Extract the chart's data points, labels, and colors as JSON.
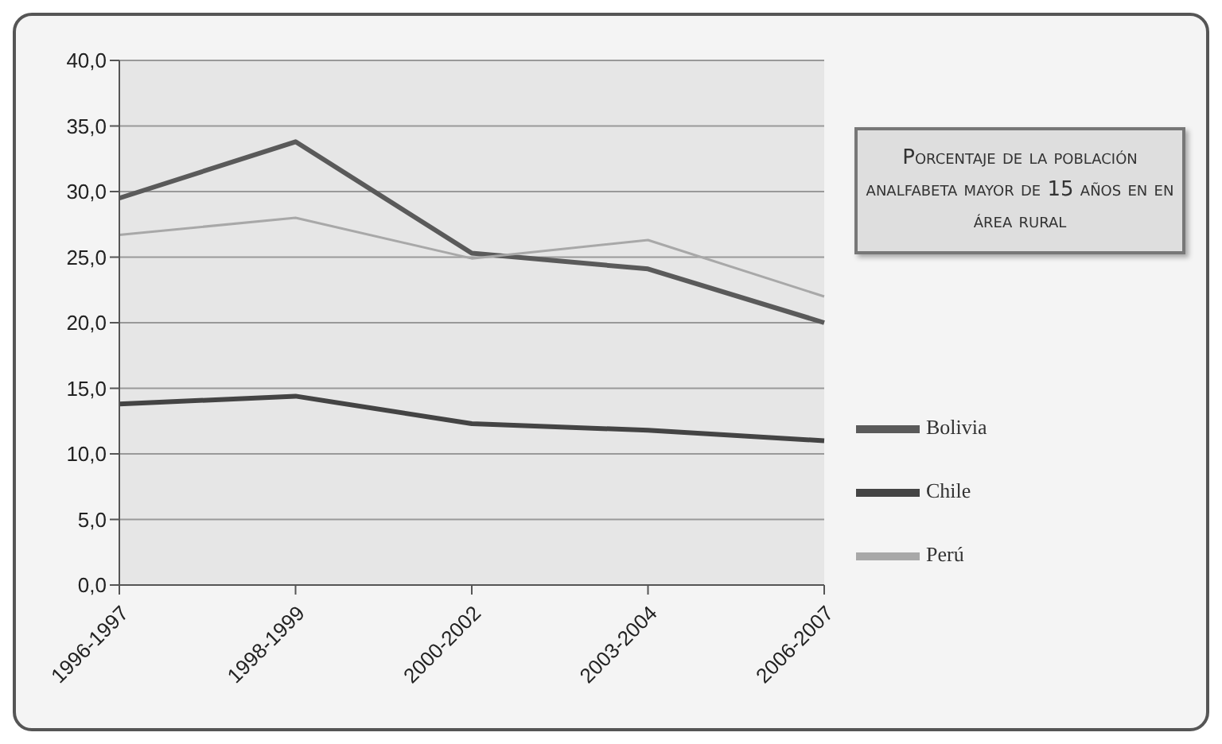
{
  "chart_data": {
    "type": "line",
    "title": "Porcentaje de la población analfabeta mayor de 15 años en en área rural",
    "categories": [
      "1996-1997",
      "1998-1999",
      "2000-2002",
      "2003-2004",
      "2006-2007"
    ],
    "series": [
      {
        "name": "Bolivia",
        "color": "#5a5a5a",
        "values": [
          29.5,
          33.8,
          25.3,
          24.1,
          20.0
        ]
      },
      {
        "name": "Chile",
        "color": "#444444",
        "values": [
          13.8,
          14.4,
          12.3,
          11.8,
          11.0
        ]
      },
      {
        "name": "Perú",
        "color": "#a8a8a8",
        "values": [
          26.7,
          28.0,
          24.9,
          26.3,
          22.0
        ]
      }
    ],
    "ylim": [
      0,
      40
    ],
    "yticks": [
      {
        "value": 0,
        "label": "0,0"
      },
      {
        "value": 5,
        "label": "5,0"
      },
      {
        "value": 10,
        "label": "10,0"
      },
      {
        "value": 15,
        "label": "15,0"
      },
      {
        "value": 20,
        "label": "20,0"
      },
      {
        "value": 25,
        "label": "25,0"
      },
      {
        "value": 30,
        "label": "30,0"
      },
      {
        "value": 35,
        "label": "35,0"
      },
      {
        "value": 40,
        "label": "40,0"
      }
    ],
    "grid": "y",
    "legend": "right",
    "marker": "none",
    "line_style": "solid"
  }
}
